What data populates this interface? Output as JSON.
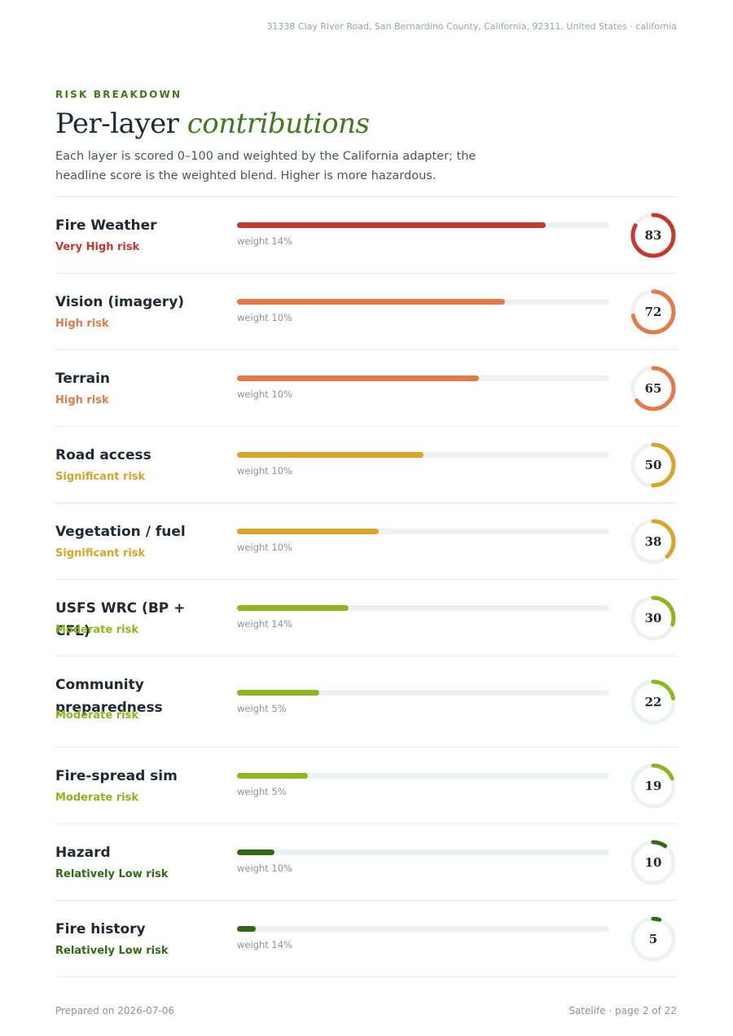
{
  "header": {
    "address": "31338 Clay River Road, San Bernardino County, California, 92311, United States · california"
  },
  "section": {
    "eyebrow": "RISK BREAKDOWN",
    "title_main": "Per-layer ",
    "title_accent": "contributions",
    "intro": "Each layer is scored 0–100 and weighted by the California adapter; the headline score is the weighted blend. Higher is more hazardous."
  },
  "colors": {
    "very_high": "#c8372d",
    "high": "#e57a49",
    "significant": "#dba424",
    "moderate": "#8cb71c",
    "low": "#2f6b12",
    "track": "#eef0f2"
  },
  "layers": [
    {
      "name": "Fire Weather",
      "risk": "Very High risk",
      "level": "very_high",
      "weight": "weight 14%",
      "score": 83
    },
    {
      "name": "Vision (imagery)",
      "risk": "High risk",
      "level": "high",
      "weight": "weight 10%",
      "score": 72
    },
    {
      "name": "Terrain",
      "risk": "High risk",
      "level": "high",
      "weight": "weight 10%",
      "score": 65
    },
    {
      "name": "Road access",
      "risk": "Significant risk",
      "level": "significant",
      "weight": "weight 10%",
      "score": 50
    },
    {
      "name": "Vegetation / fuel",
      "risk": "Significant risk",
      "level": "significant",
      "weight": "weight 10%",
      "score": 38
    },
    {
      "name": "USFS WRC (BP + CFL)",
      "risk": "Moderate risk",
      "level": "moderate",
      "weight": "weight 14%",
      "score": 30
    },
    {
      "name": "Community preparedness",
      "risk": "Moderate risk",
      "level": "moderate",
      "weight": "weight 5%",
      "score": 22
    },
    {
      "name": "Fire-spread sim",
      "risk": "Moderate risk",
      "level": "moderate",
      "weight": "weight 5%",
      "score": 19
    },
    {
      "name": "Hazard",
      "risk": "Relatively Low risk",
      "level": "low",
      "weight": "weight 10%",
      "score": 10
    },
    {
      "name": "Fire history",
      "risk": "Relatively Low risk",
      "level": "low",
      "weight": "weight 14%",
      "score": 5
    }
  ],
  "footer": {
    "prepared": "Prepared on 2026-07-06",
    "page": "Satelife · page 2 of 22"
  }
}
